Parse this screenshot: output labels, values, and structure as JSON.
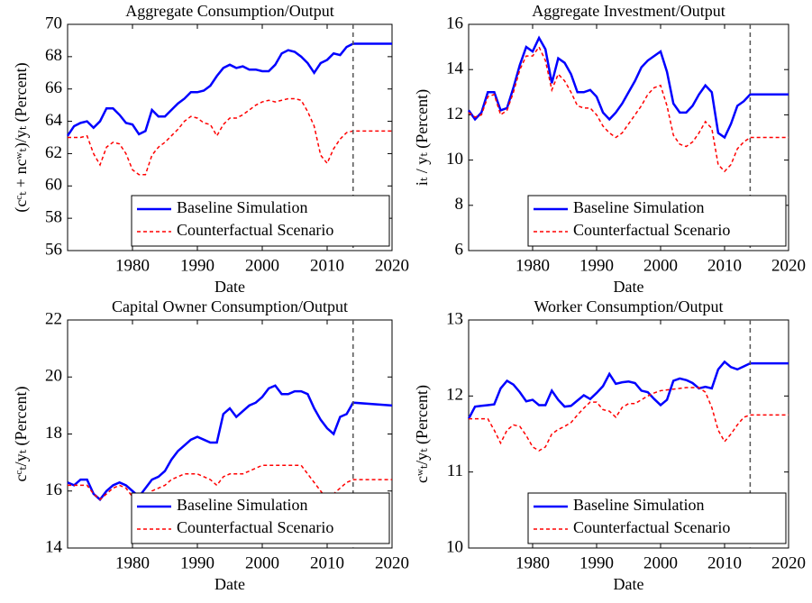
{
  "chart_data": [
    {
      "type": "line",
      "title": "Aggregate Consumption/Output",
      "xlabel": "Date",
      "ylabel": "(cᶜₜ + ncʷₜ)/yₜ (Percent)",
      "x": [
        1970,
        1971,
        1972,
        1973,
        1974,
        1975,
        1976,
        1977,
        1978,
        1979,
        1980,
        1981,
        1982,
        1983,
        1984,
        1985,
        1986,
        1987,
        1988,
        1989,
        1990,
        1991,
        1992,
        1993,
        1994,
        1995,
        1996,
        1997,
        1998,
        1999,
        2000,
        2001,
        2002,
        2003,
        2004,
        2005,
        2006,
        2007,
        2008,
        2009,
        2010,
        2011,
        2012,
        2013,
        2014,
        2020
      ],
      "series": [
        {
          "name": "Baseline Simulation",
          "color": "#0000ff",
          "style": "solid",
          "values": [
            63.1,
            63.7,
            63.9,
            64.0,
            63.6,
            64.0,
            64.8,
            64.8,
            64.4,
            63.9,
            63.8,
            63.2,
            63.4,
            64.7,
            64.3,
            64.3,
            64.7,
            65.1,
            65.4,
            65.8,
            65.8,
            65.9,
            66.2,
            66.8,
            67.3,
            67.5,
            67.3,
            67.4,
            67.2,
            67.2,
            67.1,
            67.1,
            67.5,
            68.2,
            68.4,
            68.3,
            68.0,
            67.6,
            67.0,
            67.6,
            67.8,
            68.2,
            68.1,
            68.6,
            68.8,
            68.8
          ]
        },
        {
          "name": "Counterfactual Scenario",
          "color": "#ff0000",
          "style": "dashed",
          "values": [
            63.0,
            63.0,
            63.0,
            63.1,
            62.0,
            61.3,
            62.4,
            62.7,
            62.6,
            62.0,
            61.0,
            60.7,
            60.7,
            61.9,
            62.4,
            62.7,
            63.1,
            63.5,
            64.0,
            64.3,
            64.2,
            63.9,
            63.8,
            63.1,
            63.8,
            64.2,
            64.2,
            64.4,
            64.7,
            65.0,
            65.2,
            65.3,
            65.2,
            65.3,
            65.4,
            65.4,
            65.3,
            64.6,
            63.7,
            61.9,
            61.4,
            62.3,
            62.9,
            63.3,
            63.4,
            63.4
          ]
        }
      ],
      "xlim": [
        1970,
        2020
      ],
      "xticks": [
        1980,
        1990,
        2000,
        2010,
        2020
      ],
      "ylim": [
        56,
        70
      ],
      "yticks": [
        56,
        58,
        60,
        62,
        64,
        66,
        68,
        70
      ],
      "vline": 2014,
      "legend": "lower right"
    },
    {
      "type": "line",
      "title": "Aggregate Investment/Output",
      "xlabel": "Date",
      "ylabel": "iₜ / yₜ (Percent)",
      "x": [
        1970,
        1971,
        1972,
        1973,
        1974,
        1975,
        1976,
        1977,
        1978,
        1979,
        1980,
        1981,
        1982,
        1983,
        1984,
        1985,
        1986,
        1987,
        1988,
        1989,
        1990,
        1991,
        1992,
        1993,
        1994,
        1995,
        1996,
        1997,
        1998,
        1999,
        2000,
        2001,
        2002,
        2003,
        2004,
        2005,
        2006,
        2007,
        2008,
        2009,
        2010,
        2011,
        2012,
        2013,
        2014,
        2020
      ],
      "series": [
        {
          "name": "Baseline Simulation",
          "color": "#0000ff",
          "style": "solid",
          "values": [
            12.2,
            11.8,
            12.1,
            13.0,
            13.0,
            12.2,
            12.3,
            13.2,
            14.2,
            15.0,
            14.8,
            15.4,
            14.9,
            13.4,
            14.5,
            14.3,
            13.8,
            13.0,
            13.0,
            13.1,
            12.8,
            12.1,
            11.8,
            12.1,
            12.5,
            13.0,
            13.5,
            14.1,
            14.4,
            14.6,
            14.8,
            13.9,
            12.5,
            12.1,
            12.1,
            12.4,
            12.9,
            13.3,
            13.0,
            11.2,
            11.0,
            11.6,
            12.4,
            12.6,
            12.9,
            12.9
          ]
        },
        {
          "name": "Counterfactual Scenario",
          "color": "#ff0000",
          "style": "dashed",
          "values": [
            12.1,
            11.9,
            12.0,
            12.8,
            12.9,
            12.0,
            12.2,
            13.0,
            14.0,
            14.6,
            14.6,
            15.0,
            14.4,
            13.1,
            13.8,
            13.5,
            13.0,
            12.4,
            12.3,
            12.3,
            12.0,
            11.5,
            11.2,
            11.0,
            11.2,
            11.6,
            12.0,
            12.4,
            12.9,
            13.2,
            13.3,
            12.4,
            11.1,
            10.7,
            10.6,
            10.8,
            11.2,
            11.7,
            11.4,
            9.8,
            9.5,
            9.8,
            10.5,
            10.8,
            11.0,
            11.0
          ]
        }
      ],
      "xlim": [
        1970,
        2020
      ],
      "xticks": [
        1980,
        1990,
        2000,
        2010,
        2020
      ],
      "ylim": [
        6,
        16
      ],
      "yticks": [
        6,
        8,
        10,
        12,
        14,
        16
      ],
      "vline": 2014,
      "legend": "lower right"
    },
    {
      "type": "line",
      "title": "Capital Owner Consumption/Output",
      "xlabel": "Date",
      "ylabel": "cᶜₜ/yₜ (Percent)",
      "x": [
        1970,
        1971,
        1972,
        1973,
        1974,
        1975,
        1976,
        1977,
        1978,
        1979,
        1980,
        1981,
        1982,
        1983,
        1984,
        1985,
        1986,
        1987,
        1988,
        1989,
        1990,
        1991,
        1992,
        1993,
        1994,
        1995,
        1996,
        1997,
        1998,
        1999,
        2000,
        2001,
        2002,
        2003,
        2004,
        2005,
        2006,
        2007,
        2008,
        2009,
        2010,
        2011,
        2012,
        2013,
        2014,
        2020
      ],
      "series": [
        {
          "name": "Baseline Simulation",
          "color": "#0000ff",
          "style": "solid",
          "values": [
            16.3,
            16.2,
            16.4,
            16.4,
            15.9,
            15.7,
            16.0,
            16.2,
            16.3,
            16.2,
            16.0,
            15.8,
            16.1,
            16.4,
            16.5,
            16.7,
            17.1,
            17.4,
            17.6,
            17.8,
            17.9,
            17.8,
            17.7,
            17.7,
            18.7,
            18.9,
            18.6,
            18.8,
            19.0,
            19.1,
            19.3,
            19.6,
            19.7,
            19.4,
            19.4,
            19.5,
            19.5,
            19.4,
            18.9,
            18.5,
            18.2,
            18.0,
            18.6,
            18.7,
            19.1,
            19.0
          ]
        },
        {
          "name": "Counterfactual Scenario",
          "color": "#ff0000",
          "style": "dashed",
          "values": [
            16.2,
            16.2,
            16.2,
            16.2,
            15.9,
            15.7,
            15.9,
            16.1,
            16.2,
            16.1,
            15.8,
            15.6,
            15.7,
            16.0,
            16.1,
            16.2,
            16.4,
            16.5,
            16.6,
            16.6,
            16.6,
            16.5,
            16.4,
            16.2,
            16.5,
            16.6,
            16.6,
            16.6,
            16.7,
            16.8,
            16.9,
            16.9,
            16.9,
            16.9,
            16.9,
            16.9,
            16.9,
            16.6,
            16.3,
            16.0,
            15.7,
            15.9,
            16.1,
            16.3,
            16.4,
            16.4
          ]
        }
      ],
      "xlim": [
        1970,
        2020
      ],
      "xticks": [
        1980,
        1990,
        2000,
        2010,
        2020
      ],
      "ylim": [
        14,
        22
      ],
      "yticks": [
        14,
        16,
        18,
        20,
        22
      ],
      "vline": 2014,
      "legend": "lower right"
    },
    {
      "type": "line",
      "title": "Worker Consumption/Output",
      "xlabel": "Date",
      "ylabel": "cʷₜ/yₜ (Percent)",
      "x": [
        1970,
        1971,
        1972,
        1973,
        1974,
        1975,
        1976,
        1977,
        1978,
        1979,
        1980,
        1981,
        1982,
        1983,
        1984,
        1985,
        1986,
        1987,
        1988,
        1989,
        1990,
        1991,
        1992,
        1993,
        1994,
        1995,
        1996,
        1997,
        1998,
        1999,
        2000,
        2001,
        2002,
        2003,
        2004,
        2005,
        2006,
        2007,
        2008,
        2009,
        2010,
        2011,
        2012,
        2013,
        2014,
        2020
      ],
      "series": [
        {
          "name": "Baseline Simulation",
          "color": "#0000ff",
          "style": "solid",
          "values": [
            11.7,
            11.86,
            11.87,
            11.88,
            11.89,
            12.1,
            12.2,
            12.15,
            12.05,
            11.93,
            11.95,
            11.88,
            11.88,
            12.07,
            11.95,
            11.86,
            11.87,
            11.94,
            12.01,
            11.96,
            12.04,
            12.13,
            12.29,
            12.16,
            12.18,
            12.19,
            12.17,
            12.07,
            12.05,
            11.96,
            11.88,
            11.95,
            12.2,
            12.23,
            12.21,
            12.17,
            12.1,
            12.12,
            12.1,
            12.35,
            12.45,
            12.38,
            12.35,
            12.39,
            12.43,
            12.43
          ]
        },
        {
          "name": "Counterfactual Scenario",
          "color": "#ff0000",
          "style": "dashed",
          "values": [
            11.7,
            11.7,
            11.7,
            11.7,
            11.55,
            11.38,
            11.55,
            11.62,
            11.6,
            11.48,
            11.33,
            11.28,
            11.33,
            11.5,
            11.56,
            11.6,
            11.65,
            11.75,
            11.84,
            11.92,
            11.92,
            11.82,
            11.8,
            11.72,
            11.85,
            11.9,
            11.9,
            11.95,
            12.0,
            12.04,
            12.07,
            12.08,
            12.09,
            12.1,
            12.11,
            12.11,
            12.11,
            12.05,
            11.85,
            11.55,
            11.4,
            11.5,
            11.62,
            11.72,
            11.75,
            11.75
          ]
        }
      ],
      "xlim": [
        1970,
        2020
      ],
      "xticks": [
        1980,
        1990,
        2000,
        2010,
        2020
      ],
      "ylim": [
        10,
        13
      ],
      "yticks": [
        10,
        11,
        12,
        13
      ],
      "vline": 2014,
      "legend": "lower right"
    }
  ]
}
